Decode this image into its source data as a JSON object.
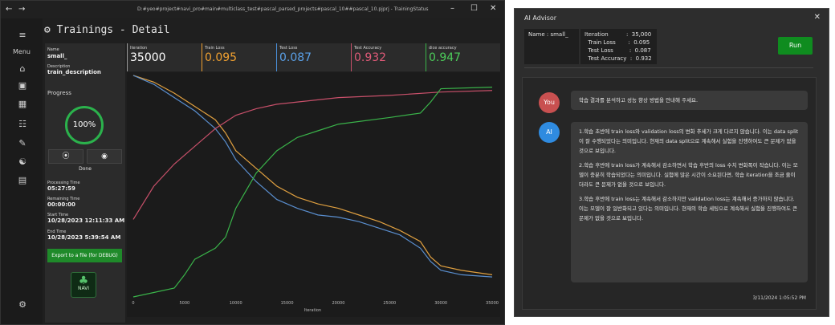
{
  "main_window": {
    "path": "D:#yeo#project#navi_pro#main#multiclass_test#pascal_parsed_projects#pascal_10##pascal_10.pjprj - TrainingStatus",
    "nav_back": "←",
    "nav_forward": "→",
    "minimize": "–",
    "maximize": "☐",
    "close": "✕",
    "menu_label": "Menu",
    "page_title": "Trainings - Detail",
    "name_label": "Name",
    "name_value": "small_",
    "description_label": "Description",
    "description_value": "train_description",
    "progress_label": "Progress",
    "progress_value": "100%",
    "play_symbol": "⦿",
    "stop_symbol": "◉",
    "status": "Done",
    "processing_time_label": "Processing Time",
    "processing_time_value": "05:27:59",
    "remaining_time_label": "Remaining Time",
    "remaining_time_value": "00:00:00",
    "start_time_label": "Start Time",
    "start_time_value": "10/28/2023 12:11:33 AM",
    "end_time_label": "End Time",
    "end_time_value": "10/28/2023 5:39:54 AM",
    "export_button": "Export to a file (for DEBUG)",
    "logo_text": "NAVI",
    "metrics": [
      {
        "label": "Iteration",
        "value": "35000",
        "color": "#9a9a9a",
        "vcolor": "#ffffff"
      },
      {
        "label": "Train Loss",
        "value": "0.095",
        "color": "#f0a030",
        "vcolor": "#f0a030"
      },
      {
        "label": "Test Loss",
        "value": "0.087",
        "color": "#4a8fd8",
        "vcolor": "#5aa0e8"
      },
      {
        "label": "Test Accuracy",
        "value": "0.932",
        "color": "#c8506a",
        "vcolor": "#e05a78"
      },
      {
        "label": "dice accuracy",
        "value": "0.947",
        "color": "#3ab44a",
        "vcolor": "#4ccc5a"
      }
    ]
  },
  "chart_data": {
    "type": "line",
    "xlabel": "Iteration",
    "x_ticks": [
      0,
      5000,
      10000,
      15000,
      20000,
      25000,
      30000,
      35000
    ],
    "xlim": [
      0,
      35000
    ],
    "series": [
      {
        "color": "#e0a040",
        "x": [
          0,
          2000,
          4000,
          6000,
          8000,
          9000,
          10000,
          12000,
          14000,
          16000,
          18000,
          20000,
          22000,
          24000,
          26000,
          28000,
          29000,
          30000,
          32000,
          35000
        ],
        "y": [
          1.0,
          0.97,
          0.92,
          0.86,
          0.8,
          0.74,
          0.66,
          0.58,
          0.5,
          0.45,
          0.42,
          0.4,
          0.37,
          0.34,
          0.3,
          0.25,
          0.18,
          0.14,
          0.12,
          0.1
        ]
      },
      {
        "color": "#5a8fd0",
        "x": [
          0,
          2000,
          4000,
          6000,
          8000,
          9000,
          10000,
          12000,
          14000,
          16000,
          18000,
          20000,
          22000,
          24000,
          26000,
          28000,
          29000,
          30000,
          32000,
          35000
        ],
        "y": [
          1.0,
          0.96,
          0.9,
          0.84,
          0.76,
          0.7,
          0.62,
          0.52,
          0.44,
          0.4,
          0.37,
          0.36,
          0.34,
          0.31,
          0.28,
          0.22,
          0.16,
          0.12,
          0.1,
          0.09
        ]
      },
      {
        "color": "#c8506a",
        "x": [
          0,
          2000,
          4000,
          6000,
          8000,
          10000,
          12000,
          14000,
          16000,
          18000,
          20000,
          25000,
          30000,
          35000
        ],
        "y": [
          0.35,
          0.5,
          0.6,
          0.68,
          0.76,
          0.82,
          0.85,
          0.87,
          0.88,
          0.89,
          0.9,
          0.91,
          0.925,
          0.932
        ]
      },
      {
        "color": "#3ab44a",
        "x": [
          0,
          2000,
          4000,
          5000,
          6000,
          8000,
          9000,
          10000,
          11000,
          12000,
          14000,
          16000,
          18000,
          20000,
          25000,
          28000,
          29000,
          30000,
          35000
        ],
        "y": [
          0.0,
          0.02,
          0.04,
          0.1,
          0.17,
          0.22,
          0.27,
          0.4,
          0.48,
          0.56,
          0.66,
          0.72,
          0.75,
          0.78,
          0.81,
          0.83,
          0.88,
          0.94,
          0.947
        ]
      }
    ]
  },
  "advisor": {
    "title": "AI Advisor",
    "close": "✕",
    "name_line": "Name  :  small_",
    "stats": "Iteration          :  35,000\n  Train Loss       :  0.095\n  Test Loss         :  0.087\n  Test Accuracy  :  0.932",
    "run_button": "Run",
    "you_label": "You",
    "ai_label": "AI",
    "user_message": "학습 결과를 분석하고 성능 향상 방법을 안내해 주세요.",
    "ai_p1": "1.학습 초반에 train loss와 validation loss의 변화 추세가 크게 다르지 않습니다. 이는 data split이 잘 수행되었다는 의미입니다. 현재의 data split으로 계속해서 실험을 진행하여도 큰 문제가 없을 것으로 보입니다.",
    "ai_p2": "2.학습 후반에 train loss가 계속해서 감소하면서 학습 후반의 loss 수치 변화폭이 작습니다. 이는 모델이 충분히 학습되었다는 의미입니다. 실험에 많은 시간이 소요된다면, 학습 iteration을 조금 줄이더라도 큰 문제가 없을 것으로 보입니다.",
    "ai_p3": "3.학습 후반에 train loss는 계속해서 감소하지만 validation loss는 계속해서 증가하지 않습니다. 이는 모델이 잘 일반화되고 있다는 의미입니다. 현재의 학습 세팅으로 계속해서 실험을 진행하여도 큰 문제가 없을 것으로 보입니다.",
    "timestamp": "3/11/2024 1:05:52 PM"
  }
}
